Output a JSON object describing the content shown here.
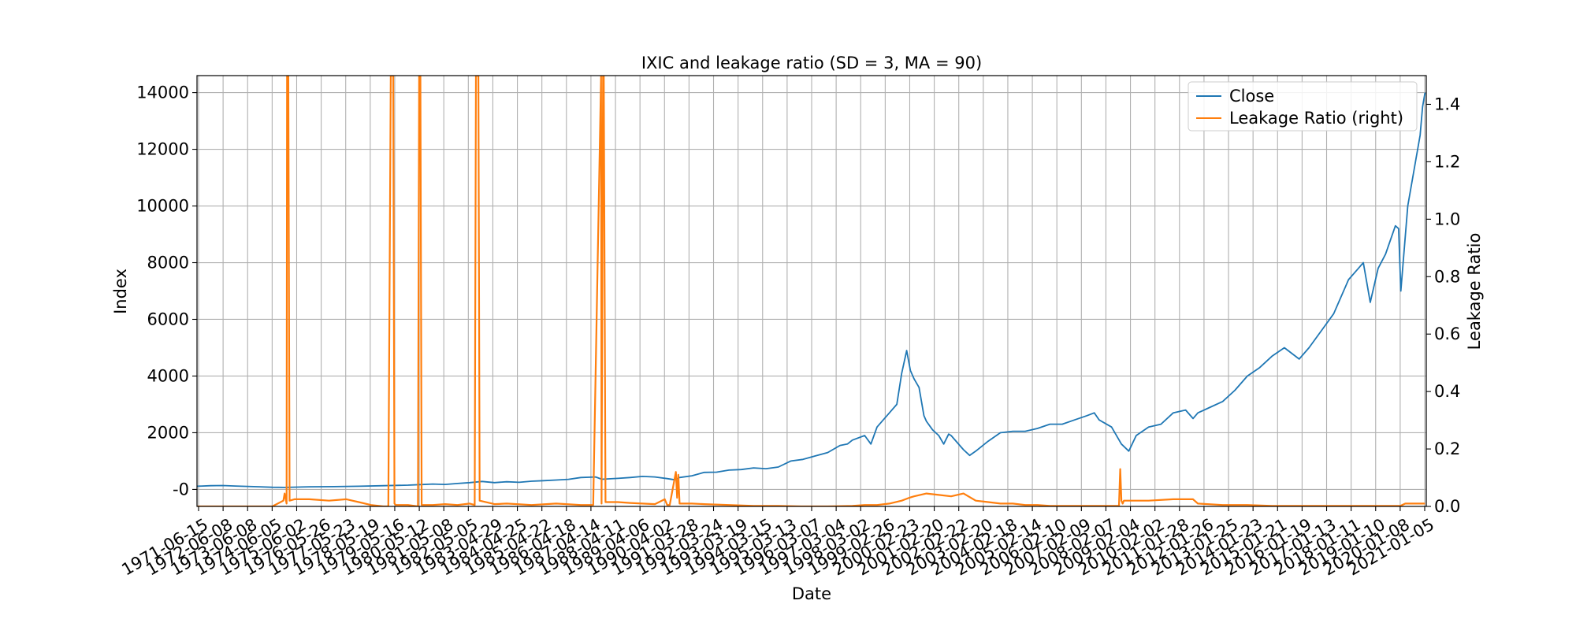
{
  "chart_data": {
    "type": "line",
    "title": "IXIC and leakage ratio (SD = 3, MA = 90)",
    "xlabel": "Date",
    "ylabel": "Index",
    "ylabel_right": "Leakage Ratio",
    "x_tick_labels": [
      "1971-06-15",
      "1972-06-08",
      "1973-06-08",
      "1974-06-05",
      "1975-06-02",
      "1976-05-26",
      "1977-05-23",
      "1978-05-19",
      "1979-05-16",
      "1980-05-12",
      "1981-05-08",
      "1982-05-05",
      "1983-04-29",
      "1984-04-25",
      "1985-04-22",
      "1986-04-18",
      "1987-04-14",
      "1988-04-11",
      "1989-04-06",
      "1990-04-02",
      "1991-03-28",
      "1992-03-24",
      "1993-03-19",
      "1994-03-15",
      "1995-03-13",
      "1996-03-07",
      "1997-03-04",
      "1998-03-02",
      "1999-02-26",
      "2000-02-23",
      "2001-02-20",
      "2002-02-22",
      "2003-02-20",
      "2004-02-18",
      "2005-02-14",
      "2006-02-10",
      "2007-02-09",
      "2008-02-07",
      "2009-02-04",
      "2010-02-02",
      "2011-01-28",
      "2012-01-26",
      "2013-01-25",
      "2014-01-23",
      "2015-01-21",
      "2016-01-19",
      "2017-01-13",
      "2018-01-11",
      "2019-01-10",
      "2020-01-08",
      "2021-01-05"
    ],
    "ylim_left": [
      -600,
      14600
    ],
    "yticks_left": [
      "-0",
      "2000",
      "4000",
      "6000",
      "8000",
      "10000",
      "12000",
      "14000"
    ],
    "ylim_right": [
      0,
      1.5
    ],
    "yticks_right": [
      "0.0",
      "0.2",
      "0.4",
      "0.6",
      "0.8",
      "1.0",
      "1.2",
      "1.4"
    ],
    "grid": true,
    "legend_position": "top-right",
    "series": [
      {
        "name": "Close",
        "axis": "left",
        "color": "#1f77b4",
        "x": [
          1971.45,
          1972.0,
          1972.5,
          1973.0,
          1973.5,
          1974.0,
          1974.5,
          1975.0,
          1975.5,
          1976.0,
          1977.0,
          1978.0,
          1979.0,
          1980.0,
          1980.5,
          1981.0,
          1981.5,
          1982.0,
          1982.5,
          1983.0,
          1983.5,
          1984.0,
          1984.5,
          1985.0,
          1985.5,
          1986.0,
          1986.5,
          1987.0,
          1987.6,
          1987.85,
          1988.5,
          1989.0,
          1989.5,
          1990.0,
          1990.5,
          1990.8,
          1991.0,
          1991.5,
          1992.0,
          1992.5,
          1993.0,
          1993.5,
          1994.0,
          1994.5,
          1995.0,
          1995.5,
          1996.0,
          1996.5,
          1997.0,
          1997.5,
          1997.8,
          1998.0,
          1998.5,
          1998.75,
          1999.0,
          1999.5,
          1999.8,
          2000.0,
          2000.2,
          2000.35,
          2000.5,
          2000.7,
          2000.9,
          2001.0,
          2001.25,
          2001.5,
          2001.7,
          2001.9,
          2002.0,
          2002.5,
          2002.75,
          2003.0,
          2003.5,
          2004.0,
          2004.5,
          2005.0,
          2005.5,
          2006.0,
          2006.5,
          2007.0,
          2007.5,
          2007.8,
          2008.0,
          2008.5,
          2008.9,
          2009.2,
          2009.5,
          2010.0,
          2010.5,
          2011.0,
          2011.5,
          2011.8,
          2012.0,
          2012.5,
          2013.0,
          2013.5,
          2014.0,
          2014.5,
          2015.0,
          2015.5,
          2016.1,
          2016.5,
          2017.0,
          2017.5,
          2018.0,
          2018.1,
          2018.5,
          2018.7,
          2018.98,
          2019.3,
          2019.6,
          2020.0,
          2020.13,
          2020.22,
          2020.5,
          2020.8,
          2021.0,
          2021.1,
          2021.2
        ],
        "y": [
          110,
          130,
          135,
          120,
          105,
          92,
          75,
          70,
          80,
          92,
          98,
          110,
          130,
          150,
          170,
          190,
          175,
          210,
          240,
          280,
          240,
          270,
          250,
          290,
          310,
          330,
          355,
          420,
          440,
          360,
          390,
          420,
          460,
          440,
          380,
          340,
          420,
          480,
          600,
          610,
          680,
          700,
          760,
          730,
          790,
          1000,
          1060,
          1180,
          1300,
          1550,
          1600,
          1740,
          1900,
          1600,
          2200,
          2700,
          3000,
          4100,
          4900,
          4200,
          3900,
          3600,
          2600,
          2400,
          2100,
          1900,
          1600,
          1950,
          1900,
          1400,
          1200,
          1350,
          1700,
          2000,
          2050,
          2050,
          2150,
          2300,
          2300,
          2450,
          2600,
          2700,
          2450,
          2200,
          1600,
          1350,
          1900,
          2200,
          2300,
          2700,
          2800,
          2500,
          2700,
          2900,
          3100,
          3500,
          4000,
          4300,
          4700,
          5000,
          4600,
          5000,
          5600,
          6200,
          7200,
          7400,
          7800,
          8000,
          6600,
          7800,
          8300,
          9300,
          9200,
          7000,
          10000,
          11500,
          12500,
          13500,
          14000
        ]
      },
      {
        "name": "Leakage Ratio (right)",
        "axis": "right",
        "color": "#ff7f0e",
        "x": [
          1971.45,
          1972.5,
          1973.5,
          1974.5,
          1974.95,
          1975.0,
          1975.08,
          1975.1,
          1975.15,
          1975.2,
          1975.4,
          1976.0,
          1976.8,
          1977.5,
          1978.0,
          1978.5,
          1979.0,
          1979.2,
          1979.3,
          1979.35,
          1979.4,
          1979.45,
          1979.5,
          1980.0,
          1980.4,
          1980.45,
          1980.5,
          1980.55,
          1980.6,
          1981.0,
          1981.5,
          1982.0,
          1982.5,
          1982.7,
          1982.75,
          1982.8,
          1982.85,
          1982.9,
          1983.5,
          1984.0,
          1985.0,
          1986.0,
          1987.0,
          1987.5,
          1987.82,
          1987.84,
          1987.9,
          1987.93,
          1988.0,
          1988.5,
          1989.0,
          1989.5,
          1990.0,
          1990.4,
          1990.5,
          1990.6,
          1990.85,
          1990.9,
          1990.95,
          1991.0,
          1991.5,
          1992.0,
          1993.0,
          1994.0,
          1995.0,
          1996.0,
          1997.0,
          1998.0,
          1998.5,
          1999.0,
          1999.5,
          2000.0,
          2000.3,
          2000.5,
          2001.0,
          2001.5,
          2002.0,
          2002.5,
          2003.0,
          2003.5,
          2004.0,
          2004.5,
          2005.0,
          2005.5,
          2006.0,
          2007.0,
          2008.0,
          2008.8,
          2008.85,
          2008.9,
          2008.95,
          2009.0,
          2009.5,
          2010.0,
          2011.0,
          2011.8,
          2012.0,
          2013.0,
          2014.0,
          2015.0,
          2016.0,
          2017.0,
          2018.0,
          2019.0,
          2020.0,
          2020.2,
          2020.4,
          2021.0,
          2021.2
        ],
        "y": [
          0.0,
          0.0,
          0.0,
          0.0,
          0.02,
          0.045,
          0.01,
          1.5,
          1.5,
          0.02,
          0.025,
          0.025,
          0.02,
          0.025,
          0.015,
          0.005,
          0.0,
          0.0,
          1.5,
          1.5,
          1.5,
          0.01,
          0.005,
          0.005,
          0.0,
          1.5,
          1.5,
          0.005,
          0.005,
          0.005,
          0.008,
          0.005,
          0.01,
          0.005,
          1.5,
          1.5,
          1.5,
          0.02,
          0.008,
          0.01,
          0.005,
          0.01,
          0.005,
          0.005,
          1.5,
          0.01,
          1.5,
          1.5,
          0.015,
          0.015,
          0.012,
          0.01,
          0.008,
          0.025,
          0.005,
          0.005,
          0.12,
          0.03,
          0.11,
          0.01,
          0.01,
          0.008,
          0.005,
          0.002,
          0.002,
          0.0,
          0.0,
          0.002,
          0.005,
          0.005,
          0.01,
          0.02,
          0.03,
          0.035,
          0.045,
          0.04,
          0.035,
          0.045,
          0.02,
          0.015,
          0.01,
          0.01,
          0.005,
          0.005,
          0.002,
          0.002,
          0.002,
          0.002,
          0.13,
          0.02,
          0.01,
          0.02,
          0.02,
          0.02,
          0.025,
          0.025,
          0.01,
          0.005,
          0.005,
          0.002,
          0.002,
          0.002,
          0.002,
          0.002,
          0.002,
          0.002,
          0.01,
          0.01,
          0.01
        ]
      }
    ]
  }
}
